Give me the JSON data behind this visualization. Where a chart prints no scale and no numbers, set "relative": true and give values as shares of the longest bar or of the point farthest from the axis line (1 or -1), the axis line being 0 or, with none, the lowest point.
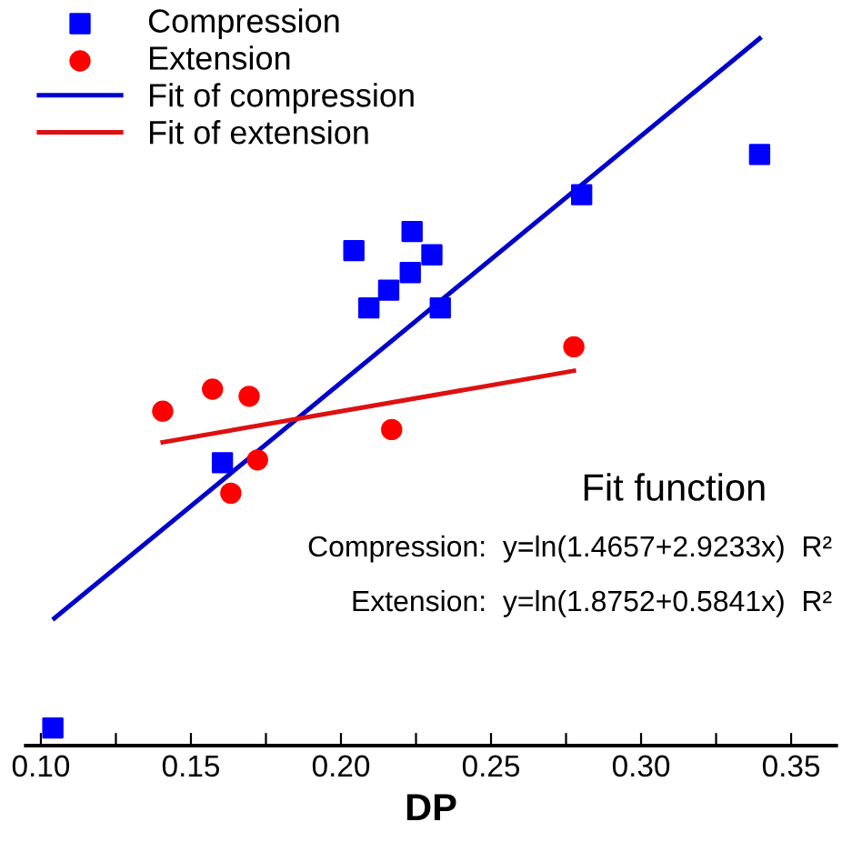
{
  "chart_data": {
    "type": "scatter",
    "relative": true,
    "xlabel": "DP",
    "xlim": [
      0.095,
      0.365
    ],
    "xticks": [
      {
        "value": 0.1,
        "label": "0.10"
      },
      {
        "value": 0.125,
        "label": null
      },
      {
        "value": 0.15,
        "label": "0.15"
      },
      {
        "value": 0.175,
        "label": null
      },
      {
        "value": 0.2,
        "label": "0.20"
      },
      {
        "value": 0.225,
        "label": null
      },
      {
        "value": 0.25,
        "label": "0.25"
      },
      {
        "value": 0.275,
        "label": null
      },
      {
        "value": 0.3,
        "label": "0.30"
      },
      {
        "value": 0.325,
        "label": null
      },
      {
        "value": 0.35,
        "label": "0.35"
      }
    ],
    "legend": "top left",
    "grid": false,
    "series": [
      {
        "name": "Compression",
        "marker": "square",
        "color": "#0000ff",
        "x": [
          0.104,
          0.1605,
          0.2043,
          0.2237,
          0.2303,
          0.2231,
          0.2159,
          0.2093,
          0.2331,
          0.2802,
          0.3395
        ],
        "values": [
          0.025,
          0.4,
          0.7,
          0.727,
          0.694,
          0.669,
          0.644,
          0.619,
          0.619,
          0.779,
          0.836
        ]
      },
      {
        "name": "Extension",
        "marker": "circle",
        "color": "#ff0000",
        "x": [
          0.1406,
          0.1572,
          0.1694,
          0.1722,
          0.1633,
          0.2169,
          0.2776
        ],
        "values": [
          0.473,
          0.504,
          0.494,
          0.404,
          0.357,
          0.447,
          0.564
        ]
      },
      {
        "name": "Fit of compression",
        "type": "line",
        "marker": "none",
        "line_style": "solid",
        "color": "#0000cc",
        "x": [
          0.1045,
          0.3395
        ],
        "values": [
          0.18,
          1.0
        ]
      },
      {
        "name": "Fit of extension",
        "type": "line",
        "marker": "none",
        "line_style": "solid",
        "color": "#dd1111",
        "x": [
          0.1406,
          0.2776
        ],
        "values": [
          0.429,
          0.53
        ]
      }
    ],
    "annotations": [
      "Fit function",
      "Compression:  y=ln(1.4657+2.9233x)  R²",
      "Extension:  y=ln(1.8752+0.5841x)  R²"
    ]
  }
}
